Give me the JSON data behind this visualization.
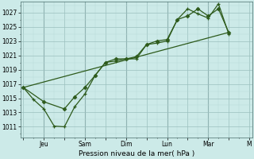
{
  "background_color": "#cceae8",
  "grid_color_major": "#9bbfbe",
  "grid_color_minor": "#b8d8d6",
  "line_color": "#2d5a1b",
  "ylabel": "Pression niveau de la mer( hPa )",
  "ylim": [
    1009.5,
    1028.5
  ],
  "yticks": [
    1011,
    1013,
    1015,
    1017,
    1019,
    1021,
    1023,
    1025,
    1027
  ],
  "day_boundaries": [
    2,
    6,
    10,
    14,
    18
  ],
  "x_tick_positions": [
    0,
    2,
    4,
    6,
    8,
    10,
    12,
    14,
    16,
    18,
    20,
    22
  ],
  "x_labels": [
    "",
    "Jeu",
    "",
    "Sam",
    "",
    "Dim",
    "",
    "Lun",
    "",
    "Mar",
    "",
    "M"
  ],
  "xlim": [
    -0.3,
    22.3
  ],
  "series_main": {
    "x": [
      0,
      1,
      2,
      3,
      4,
      5,
      6,
      7,
      8,
      9,
      10,
      11,
      12,
      13,
      14,
      15,
      16,
      17,
      18,
      19,
      20
    ],
    "y": [
      1016.5,
      1014.8,
      1013.5,
      1011.1,
      1011.0,
      1013.8,
      1015.6,
      1018.2,
      1020.0,
      1020.2,
      1020.5,
      1020.5,
      1022.5,
      1022.7,
      1023.0,
      1026.0,
      1027.5,
      1026.8,
      1026.2,
      1028.2,
      1024.0
    ]
  },
  "series_secondary": {
    "x": [
      0,
      2,
      4,
      5,
      6,
      7,
      8,
      9,
      10,
      11,
      12,
      13,
      14,
      15,
      16,
      17,
      18,
      19,
      20
    ],
    "y": [
      1016.5,
      1014.5,
      1013.5,
      1015.2,
      1016.5,
      1018.2,
      1020.0,
      1020.5,
      1020.5,
      1020.8,
      1022.5,
      1023.0,
      1023.2,
      1026.0,
      1026.5,
      1027.5,
      1026.5,
      1027.5,
      1024.2
    ]
  },
  "series_trend": {
    "x": [
      0,
      20
    ],
    "y": [
      1016.5,
      1024.2
    ]
  }
}
